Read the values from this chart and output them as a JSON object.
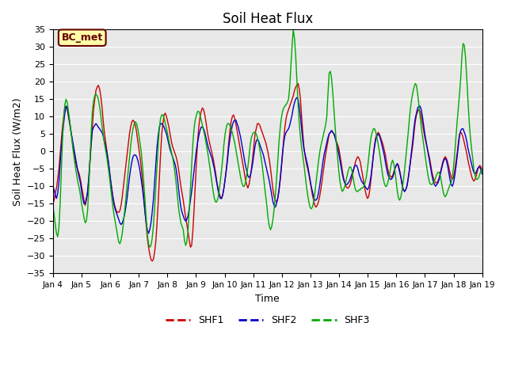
{
  "title": "Soil Heat Flux",
  "ylabel": "Soil Heat Flux (W/m2)",
  "xlabel": "Time",
  "ylim": [
    -35,
    35
  ],
  "yticks": [
    -35,
    -30,
    -25,
    -20,
    -15,
    -10,
    -5,
    0,
    5,
    10,
    15,
    20,
    25,
    30,
    35
  ],
  "xtick_labels": [
    "Jan 4",
    "Jan 5",
    "Jan 6",
    "Jan 7",
    "Jan 8",
    "Jan 9",
    "Jan 10",
    "Jan 11",
    "Jan 12",
    "Jan 13",
    "Jan 14",
    "Jan 15",
    "Jan 16",
    "Jan 17",
    "Jan 18",
    "Jan 19"
  ],
  "colors": {
    "SHF1": "#cc0000",
    "SHF2": "#0000cc",
    "SHF3": "#00aa00",
    "bg": "#e8e8e8",
    "bc_met_bg": "#ffffaa",
    "bc_met_border": "#660000"
  },
  "bc_met_label": "BC_met",
  "legend_labels": [
    "SHF1",
    "SHF2",
    "SHF3"
  ],
  "SHF1": [
    -15.0,
    -14.0,
    -12.0,
    -10.5,
    -8.0,
    -5.0,
    -1.0,
    3.0,
    7.0,
    10.0,
    12.5,
    13.0,
    12.0,
    10.0,
    8.0,
    6.0,
    3.5,
    1.0,
    -1.0,
    -3.0,
    -4.5,
    -5.5,
    -6.5,
    -8.0,
    -10.0,
    -12.0,
    -14.0,
    -15.5,
    -14.0,
    -12.0,
    -8.0,
    -3.0,
    2.0,
    7.0,
    12.0,
    15.0,
    17.5,
    18.5,
    19.0,
    18.0,
    16.0,
    13.0,
    9.0,
    5.5,
    3.0,
    0.5,
    -2.0,
    -5.0,
    -8.0,
    -10.0,
    -12.5,
    -14.5,
    -16.0,
    -17.0,
    -17.5,
    -17.5,
    -17.0,
    -15.5,
    -13.0,
    -10.0,
    -7.0,
    -4.0,
    -1.0,
    2.0,
    5.0,
    7.0,
    8.5,
    9.0,
    8.5,
    7.5,
    5.5,
    3.0,
    0.5,
    -2.0,
    -5.0,
    -9.0,
    -13.0,
    -17.0,
    -21.0,
    -25.0,
    -27.5,
    -29.5,
    -31.0,
    -31.5,
    -31.0,
    -29.0,
    -26.0,
    -21.0,
    -15.0,
    -8.0,
    -1.0,
    5.0,
    8.0,
    10.5,
    11.0,
    10.0,
    8.5,
    7.0,
    5.0,
    3.0,
    1.5,
    0.5,
    -0.5,
    -1.5,
    -3.0,
    -5.0,
    -7.5,
    -10.0,
    -12.0,
    -14.0,
    -16.5,
    -19.0,
    -21.0,
    -23.0,
    -25.5,
    -27.5,
    -27.0,
    -23.0,
    -17.0,
    -10.0,
    -3.0,
    3.0,
    7.0,
    10.0,
    11.5,
    12.5,
    12.0,
    10.5,
    8.5,
    6.0,
    4.0,
    2.5,
    1.0,
    -0.5,
    -2.0,
    -4.0,
    -6.0,
    -8.5,
    -10.5,
    -12.0,
    -13.0,
    -13.5,
    -12.5,
    -10.5,
    -8.0,
    -5.0,
    -1.5,
    2.5,
    6.0,
    8.5,
    10.0,
    10.5,
    9.5,
    8.0,
    6.0,
    4.0,
    2.0,
    0.0,
    -2.0,
    -4.0,
    -6.0,
    -8.0,
    -9.5,
    -10.5,
    -9.5,
    -7.5,
    -5.0,
    -2.0,
    1.5,
    5.0,
    6.5,
    8.0,
    8.0,
    7.5,
    6.5,
    5.5,
    4.5,
    3.5,
    2.5,
    1.0,
    -0.5,
    -2.5,
    -5.0,
    -8.0,
    -11.0,
    -13.0,
    -14.0,
    -14.5,
    -13.5,
    -11.5,
    -8.5,
    -5.0,
    -1.0,
    3.5,
    7.0,
    9.5,
    11.0,
    12.0,
    13.0,
    14.0,
    15.0,
    16.0,
    17.5,
    18.5,
    19.0,
    19.5,
    18.0,
    15.0,
    10.0,
    5.0,
    1.0,
    -1.5,
    -3.5,
    -5.0,
    -6.5,
    -8.5,
    -10.5,
    -12.5,
    -14.0,
    -15.5,
    -16.0,
    -15.5,
    -14.5,
    -13.0,
    -11.0,
    -8.5,
    -6.0,
    -3.5,
    -1.0,
    1.0,
    3.0,
    5.0,
    5.5,
    6.0,
    5.5,
    5.0,
    4.0,
    3.0,
    2.0,
    1.0,
    -1.0,
    -3.0,
    -5.5,
    -7.5,
    -9.0,
    -10.0,
    -10.5,
    -10.5,
    -10.0,
    -9.0,
    -7.5,
    -6.0,
    -4.5,
    -3.0,
    -2.0,
    -1.5,
    -2.0,
    -3.0,
    -5.0,
    -7.0,
    -9.0,
    -11.0,
    -12.5,
    -13.5,
    -13.0,
    -11.0,
    -8.0,
    -4.5,
    -1.0,
    2.0,
    4.0,
    5.0,
    5.5,
    5.0,
    4.0,
    3.0,
    2.0,
    0.5,
    -1.0,
    -3.0,
    -5.0,
    -6.5,
    -7.0,
    -7.5,
    -7.0,
    -6.0,
    -5.0,
    -4.0,
    -3.5,
    -4.0,
    -5.5,
    -7.5,
    -9.5,
    -11.0,
    -11.5,
    -11.0,
    -10.0,
    -8.0,
    -5.5,
    -3.0,
    -0.5,
    2.0,
    5.5,
    8.5,
    10.5,
    11.5,
    12.0,
    11.5,
    10.0,
    8.0,
    6.0,
    4.0,
    2.5,
    1.0,
    -0.5,
    -2.0,
    -4.0,
    -6.0,
    -7.5,
    -8.5,
    -9.0,
    -9.0,
    -8.5,
    -7.5,
    -6.0,
    -4.5,
    -3.0,
    -2.0,
    -1.5,
    -2.0,
    -3.0,
    -4.5,
    -6.0,
    -7.5,
    -8.0,
    -7.5,
    -5.5,
    -3.0,
    -0.5,
    2.5,
    5.0,
    5.5,
    5.0,
    4.0,
    2.5,
    1.0,
    -0.5,
    -2.5,
    -4.0,
    -5.5,
    -7.0,
    -8.0,
    -8.5,
    -8.0,
    -7.0,
    -5.5,
    -4.5,
    -4.0,
    -4.5,
    -5.5
  ],
  "SHF2": [
    -10.0,
    -11.0,
    -12.5,
    -13.5,
    -12.0,
    -9.0,
    -4.0,
    1.0,
    5.0,
    8.0,
    11.0,
    13.0,
    12.5,
    10.5,
    8.5,
    6.0,
    4.0,
    2.0,
    0.0,
    -2.0,
    -4.0,
    -6.0,
    -7.5,
    -9.0,
    -11.5,
    -13.5,
    -15.0,
    -15.0,
    -13.5,
    -11.5,
    -7.5,
    -2.5,
    2.5,
    6.0,
    7.0,
    7.5,
    8.0,
    7.5,
    7.0,
    6.5,
    6.0,
    5.5,
    4.5,
    3.0,
    1.5,
    0.0,
    -2.0,
    -4.5,
    -7.5,
    -10.5,
    -13.0,
    -15.0,
    -16.5,
    -17.5,
    -18.5,
    -19.5,
    -20.5,
    -21.0,
    -20.5,
    -19.5,
    -18.0,
    -16.0,
    -13.5,
    -10.5,
    -7.5,
    -5.0,
    -3.0,
    -1.5,
    -1.0,
    -1.0,
    -1.5,
    -2.5,
    -4.0,
    -6.0,
    -8.5,
    -11.0,
    -14.0,
    -17.5,
    -20.5,
    -22.5,
    -23.5,
    -22.5,
    -20.5,
    -17.5,
    -14.0,
    -9.0,
    -4.0,
    1.0,
    4.5,
    7.0,
    8.0,
    8.0,
    7.5,
    7.0,
    6.0,
    5.0,
    3.5,
    2.0,
    0.5,
    -0.5,
    -1.5,
    -2.5,
    -3.5,
    -5.0,
    -7.5,
    -10.5,
    -13.5,
    -16.0,
    -17.5,
    -18.5,
    -19.5,
    -20.0,
    -19.5,
    -18.5,
    -16.5,
    -14.0,
    -11.5,
    -8.5,
    -5.5,
    -2.5,
    0.5,
    2.5,
    4.5,
    6.0,
    7.0,
    7.0,
    6.5,
    5.5,
    4.0,
    2.5,
    1.0,
    0.0,
    -1.0,
    -2.0,
    -3.5,
    -5.0,
    -7.0,
    -9.0,
    -11.0,
    -12.5,
    -13.5,
    -13.5,
    -12.5,
    -10.5,
    -8.0,
    -5.5,
    -2.5,
    1.0,
    3.5,
    5.5,
    7.5,
    8.5,
    9.0,
    9.0,
    8.0,
    7.0,
    5.5,
    4.0,
    2.0,
    0.0,
    -2.0,
    -4.0,
    -5.5,
    -7.0,
    -7.5,
    -7.0,
    -5.5,
    -3.5,
    -1.0,
    1.5,
    3.0,
    3.5,
    3.0,
    2.0,
    1.0,
    0.0,
    -1.0,
    -2.5,
    -4.0,
    -5.5,
    -7.0,
    -8.5,
    -10.5,
    -12.5,
    -14.5,
    -15.5,
    -16.0,
    -15.0,
    -13.5,
    -11.0,
    -8.0,
    -4.5,
    -0.5,
    2.5,
    4.5,
    5.5,
    6.0,
    6.5,
    7.5,
    9.0,
    10.5,
    12.5,
    14.0,
    15.0,
    15.5,
    15.0,
    13.0,
    10.0,
    6.5,
    3.0,
    0.5,
    -1.0,
    -2.5,
    -4.0,
    -6.0,
    -8.0,
    -10.0,
    -11.5,
    -13.0,
    -14.0,
    -14.0,
    -13.5,
    -12.0,
    -10.0,
    -7.5,
    -5.0,
    -2.5,
    -0.5,
    1.0,
    2.5,
    4.0,
    5.0,
    5.5,
    6.0,
    5.5,
    5.0,
    4.0,
    2.5,
    1.0,
    -0.5,
    -2.5,
    -4.5,
    -6.5,
    -8.0,
    -9.0,
    -9.5,
    -9.5,
    -9.0,
    -8.5,
    -7.5,
    -6.5,
    -5.5,
    -4.5,
    -4.0,
    -4.0,
    -5.0,
    -6.5,
    -7.5,
    -8.5,
    -9.0,
    -9.5,
    -10.0,
    -10.5,
    -11.0,
    -10.5,
    -9.0,
    -7.0,
    -4.0,
    -1.0,
    1.5,
    3.5,
    4.5,
    5.0,
    4.5,
    3.5,
    2.0,
    0.5,
    -1.0,
    -3.0,
    -5.0,
    -6.5,
    -7.5,
    -8.0,
    -8.0,
    -7.5,
    -6.5,
    -5.0,
    -4.0,
    -3.5,
    -4.5,
    -6.0,
    -7.5,
    -9.5,
    -11.0,
    -11.5,
    -11.0,
    -10.0,
    -8.0,
    -5.5,
    -2.5,
    0.5,
    3.5,
    7.0,
    9.5,
    11.0,
    12.5,
    13.0,
    13.0,
    12.0,
    10.0,
    7.5,
    5.0,
    3.0,
    1.0,
    -1.0,
    -3.0,
    -5.0,
    -7.0,
    -8.5,
    -9.5,
    -10.0,
    -9.5,
    -9.0,
    -8.0,
    -6.5,
    -5.0,
    -3.5,
    -2.5,
    -2.0,
    -2.5,
    -4.0,
    -6.0,
    -8.0,
    -9.5,
    -10.0,
    -9.0,
    -7.0,
    -4.5,
    -1.5,
    1.5,
    4.5,
    6.0,
    6.5,
    6.5,
    5.5,
    4.5,
    3.0,
    1.0,
    -0.5,
    -2.0,
    -3.5,
    -5.0,
    -6.0,
    -6.5,
    -6.0,
    -5.0,
    -4.5,
    -4.5,
    -5.5,
    -6.5
  ],
  "SHF3": [
    -16.0,
    -18.0,
    -21.0,
    -23.5,
    -24.5,
    -22.0,
    -15.5,
    -6.0,
    3.0,
    9.5,
    13.5,
    15.0,
    14.0,
    11.5,
    9.0,
    6.0,
    3.0,
    0.0,
    -2.5,
    -5.0,
    -7.0,
    -9.0,
    -10.5,
    -12.5,
    -15.0,
    -17.0,
    -19.0,
    -20.5,
    -20.0,
    -17.0,
    -10.5,
    -2.5,
    5.5,
    11.5,
    14.5,
    16.0,
    16.5,
    16.0,
    15.0,
    13.0,
    10.5,
    7.5,
    5.0,
    2.5,
    0.5,
    -1.5,
    -4.0,
    -6.5,
    -9.5,
    -12.5,
    -15.5,
    -18.0,
    -20.0,
    -22.0,
    -24.0,
    -26.0,
    -26.5,
    -25.5,
    -23.5,
    -20.5,
    -17.0,
    -13.5,
    -9.5,
    -5.5,
    -2.0,
    1.5,
    4.5,
    6.5,
    8.0,
    8.5,
    8.0,
    6.5,
    4.5,
    2.0,
    -0.5,
    -4.5,
    -9.0,
    -14.0,
    -19.0,
    -24.0,
    -26.5,
    -27.5,
    -27.0,
    -25.0,
    -21.5,
    -16.5,
    -10.5,
    -4.5,
    1.5,
    6.5,
    9.5,
    10.5,
    10.5,
    9.5,
    8.0,
    6.5,
    5.0,
    3.0,
    1.5,
    0.0,
    -1.5,
    -3.5,
    -6.0,
    -9.0,
    -12.5,
    -16.0,
    -18.5,
    -20.5,
    -21.5,
    -22.5,
    -25.5,
    -27.0,
    -26.0,
    -22.5,
    -17.0,
    -10.5,
    -4.0,
    2.0,
    6.5,
    9.0,
    10.5,
    11.5,
    11.5,
    10.5,
    9.0,
    7.5,
    6.0,
    4.5,
    2.5,
    0.5,
    -1.5,
    -4.0,
    -6.5,
    -9.0,
    -11.5,
    -13.5,
    -14.5,
    -14.5,
    -13.5,
    -11.5,
    -8.5,
    -5.5,
    -2.0,
    2.0,
    5.0,
    7.0,
    8.0,
    8.0,
    7.5,
    6.5,
    5.5,
    4.0,
    2.5,
    0.5,
    -1.5,
    -3.5,
    -5.5,
    -7.5,
    -9.0,
    -10.0,
    -10.0,
    -9.0,
    -7.0,
    -4.5,
    -1.5,
    2.0,
    4.0,
    5.0,
    5.5,
    5.5,
    5.0,
    4.0,
    2.5,
    0.5,
    -1.5,
    -4.0,
    -7.0,
    -10.0,
    -13.0,
    -16.0,
    -19.5,
    -21.5,
    -22.5,
    -21.5,
    -19.5,
    -16.5,
    -12.5,
    -8.0,
    -3.0,
    2.5,
    6.5,
    9.5,
    11.5,
    12.5,
    13.0,
    13.5,
    14.0,
    15.0,
    18.5,
    24.5,
    30.5,
    35.0,
    32.5,
    27.5,
    20.5,
    13.5,
    8.0,
    4.0,
    1.0,
    -1.5,
    -4.0,
    -7.0,
    -10.0,
    -12.5,
    -14.5,
    -16.0,
    -16.5,
    -16.0,
    -14.5,
    -12.0,
    -9.0,
    -6.0,
    -3.0,
    -0.5,
    1.5,
    3.0,
    4.5,
    6.0,
    7.5,
    10.0,
    16.5,
    22.5,
    23.0,
    21.0,
    17.0,
    12.0,
    7.0,
    2.5,
    -1.5,
    -5.5,
    -8.5,
    -10.5,
    -11.5,
    -11.0,
    -10.0,
    -8.5,
    -7.0,
    -5.5,
    -4.5,
    -4.5,
    -5.5,
    -7.5,
    -9.5,
    -11.0,
    -11.5,
    -11.5,
    -11.0,
    -11.0,
    -10.5,
    -10.5,
    -10.0,
    -9.0,
    -7.5,
    -5.0,
    -2.0,
    1.5,
    4.0,
    5.5,
    6.5,
    6.5,
    5.5,
    4.0,
    2.0,
    0.0,
    -2.5,
    -5.0,
    -7.5,
    -9.0,
    -10.0,
    -10.0,
    -9.0,
    -7.5,
    -5.5,
    -3.5,
    -2.5,
    -3.5,
    -5.5,
    -8.5,
    -11.5,
    -13.5,
    -14.0,
    -13.0,
    -11.0,
    -8.5,
    -5.5,
    -2.0,
    1.5,
    5.0,
    9.0,
    12.5,
    15.0,
    17.0,
    18.5,
    19.5,
    19.0,
    16.5,
    13.5,
    10.0,
    7.0,
    4.5,
    2.0,
    -0.5,
    -3.0,
    -5.5,
    -7.5,
    -9.0,
    -9.5,
    -9.5,
    -9.0,
    -8.5,
    -7.5,
    -6.5,
    -6.0,
    -6.0,
    -7.0,
    -9.0,
    -11.0,
    -12.5,
    -13.0,
    -12.5,
    -11.5,
    -10.5,
    -9.5,
    -9.0,
    -7.5,
    -4.5,
    -0.5,
    4.0,
    8.5,
    12.5,
    16.5,
    21.0,
    27.5,
    31.0,
    30.5,
    27.0,
    21.5,
    15.0,
    9.0,
    4.5,
    1.0,
    -2.0,
    -5.0,
    -7.0,
    -8.0,
    -8.0,
    -7.5,
    -6.5,
    -5.5,
    -5.0
  ]
}
